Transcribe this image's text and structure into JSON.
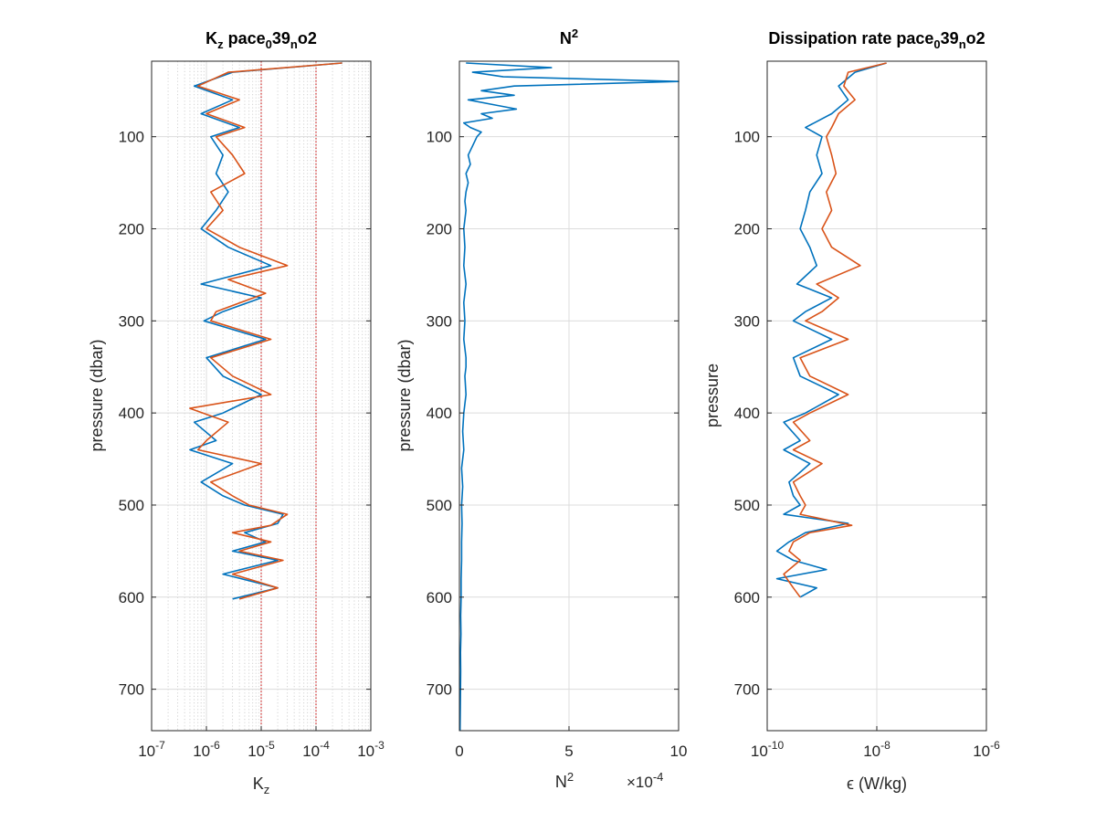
{
  "figure": {
    "background": "#ffffff",
    "series_colors": [
      "#0072BD",
      "#D95319"
    ]
  },
  "chart_data": [
    {
      "type": "line",
      "title": "K_z pace_0 39_n o2",
      "title_parts": {
        "a": "K",
        "a_sub": "z",
        "b": " pace",
        "b_sub": "0",
        "c": "39",
        "c_sub": "n",
        "d": "o2"
      },
      "xlabel": "K_z",
      "xlabel_parts": {
        "main": "K",
        "sub": "z"
      },
      "ylabel": "pressure (dbar)",
      "xscale": "log",
      "xlim": [
        1e-07,
        0.001
      ],
      "ylim": [
        745,
        18
      ],
      "y_reversed": true,
      "grid": true,
      "minor_grid_x": true,
      "xticks": [
        1e-07,
        1e-06,
        1e-05,
        0.0001,
        0.001
      ],
      "xtick_labels": [
        {
          "base": "10",
          "exp": "-7"
        },
        {
          "base": "10",
          "exp": "-6"
        },
        {
          "base": "10",
          "exp": "-5"
        },
        {
          "base": "10",
          "exp": "-4"
        },
        {
          "base": "10",
          "exp": "-3"
        }
      ],
      "yticks": [
        100,
        200,
        300,
        400,
        500,
        600,
        700
      ],
      "reference_lines": {
        "x": [
          1e-05,
          0.0001
        ],
        "color": "#CC0000",
        "style": "dotted"
      },
      "series": [
        {
          "color": "#0072BD",
          "depths": [
            20,
            30,
            45,
            60,
            75,
            90,
            100,
            120,
            140,
            160,
            180,
            200,
            220,
            240,
            260,
            275,
            290,
            300,
            320,
            340,
            360,
            380,
            400,
            410,
            430,
            440,
            455,
            475,
            490,
            500,
            510,
            520,
            530,
            540,
            550,
            560,
            575,
            590,
            602
          ],
          "values": [
            0.0003,
            3e-06,
            6e-07,
            3e-06,
            8e-07,
            4e-06,
            1.2e-06,
            2e-06,
            1.5e-06,
            2.5e-06,
            1.5e-06,
            8e-07,
            2.5e-06,
            1.5e-05,
            8e-07,
            1e-05,
            2e-06,
            9e-07,
            1.2e-05,
            1e-06,
            2e-06,
            1e-05,
            2e-06,
            6e-07,
            1.5e-06,
            5e-07,
            3e-06,
            8e-07,
            2e-06,
            5e-06,
            2.5e-05,
            2e-05,
            5e-06,
            1.2e-05,
            3e-06,
            2e-05,
            2e-06,
            2e-05,
            3e-06
          ]
        },
        {
          "color": "#D95319",
          "depths": [
            20,
            30,
            45,
            60,
            75,
            90,
            100,
            120,
            140,
            160,
            180,
            200,
            220,
            240,
            255,
            270,
            290,
            300,
            320,
            340,
            360,
            380,
            395,
            410,
            430,
            440,
            455,
            475,
            490,
            500,
            510,
            522,
            530,
            540,
            550,
            560,
            575,
            590,
            602
          ],
          "values": [
            0.0003,
            2.5e-06,
            7e-07,
            4e-06,
            1e-06,
            5e-06,
            1.5e-06,
            3e-06,
            5e-06,
            1.2e-06,
            2e-06,
            1e-06,
            4e-06,
            3e-05,
            2.5e-06,
            1.2e-05,
            1.5e-06,
            1.2e-06,
            1.5e-05,
            1.2e-06,
            3e-06,
            1.5e-05,
            5e-07,
            2.5e-06,
            1e-06,
            7e-07,
            1e-05,
            1.2e-06,
            3e-06,
            6e-06,
            3e-05,
            1.5e-05,
            3e-06,
            1.5e-05,
            4e-06,
            2.5e-05,
            3e-06,
            2e-05,
            4e-06
          ]
        }
      ]
    },
    {
      "type": "line",
      "title": "N^2",
      "title_parts": {
        "main": "N",
        "sup": "2"
      },
      "xlabel": "N^2",
      "xlabel_parts": {
        "main": "N",
        "sup": "2"
      },
      "ylabel": "pressure (dbar)",
      "xscale": "linear",
      "xlim": [
        0,
        10
      ],
      "x_multiplier": "×10^-4",
      "x_multiplier_parts": {
        "prefix": "×10",
        "exp": "-4"
      },
      "ylim": [
        745,
        18
      ],
      "y_reversed": true,
      "grid": true,
      "xticks": [
        0,
        5,
        10
      ],
      "xtick_labels": [
        "0",
        "5",
        "10"
      ],
      "yticks": [
        100,
        200,
        300,
        400,
        500,
        600,
        700
      ],
      "series": [
        {
          "color": "#0072BD",
          "depths": [
            20,
            25,
            30,
            35,
            40,
            45,
            50,
            55,
            60,
            65,
            70,
            75,
            80,
            85,
            90,
            95,
            100,
            110,
            120,
            130,
            140,
            150,
            160,
            170,
            180,
            200,
            220,
            240,
            260,
            280,
            300,
            320,
            340,
            350,
            360,
            380,
            400,
            420,
            440,
            460,
            480,
            500,
            520,
            540,
            560,
            580,
            600,
            620,
            640,
            660,
            680,
            700,
            720,
            745
          ],
          "values": [
            0.3,
            4.2,
            0.6,
            2.0,
            10.0,
            2.5,
            1.0,
            2.5,
            0.4,
            1.5,
            2.6,
            1.0,
            1.5,
            0.2,
            0.5,
            1.0,
            0.8,
            0.6,
            0.4,
            0.5,
            0.3,
            0.4,
            0.3,
            0.25,
            0.3,
            0.2,
            0.25,
            0.2,
            0.3,
            0.2,
            0.25,
            0.2,
            0.3,
            0.3,
            0.25,
            0.3,
            0.2,
            0.15,
            0.2,
            0.1,
            0.15,
            0.1,
            0.12,
            0.1,
            0.1,
            0.08,
            0.08,
            0.06,
            0.07,
            0.05,
            0.06,
            0.05,
            0.04,
            0.03
          ]
        }
      ]
    },
    {
      "type": "line",
      "title": "Dissipation rate pace_0 39_n o2",
      "title_parts": {
        "a": "Dissipation rate pace",
        "a_sub": "0",
        "b": "39",
        "b_sub": "n",
        "c": "o2"
      },
      "xlabel": "ϵ (W/kg)",
      "ylabel": "pressure",
      "xscale": "log",
      "xlim": [
        1e-10,
        1e-06
      ],
      "ylim": [
        745,
        18
      ],
      "y_reversed": true,
      "grid": true,
      "xticks": [
        1e-10,
        1e-08,
        1e-06
      ],
      "xtick_labels": [
        {
          "base": "10",
          "exp": "-10"
        },
        {
          "base": "10",
          "exp": "-8"
        },
        {
          "base": "10",
          "exp": "-6"
        }
      ],
      "yticks": [
        100,
        200,
        300,
        400,
        500,
        600,
        700
      ],
      "series": [
        {
          "color": "#0072BD",
          "depths": [
            20,
            30,
            45,
            60,
            75,
            90,
            100,
            120,
            140,
            160,
            180,
            200,
            220,
            240,
            260,
            275,
            290,
            300,
            320,
            340,
            360,
            380,
            400,
            410,
            430,
            440,
            455,
            475,
            490,
            500,
            510,
            520,
            530,
            540,
            550,
            560,
            570,
            580,
            590,
            600
          ],
          "values": [
            1.5e-08,
            4e-09,
            2e-09,
            3e-09,
            1.5e-09,
            5e-10,
            1e-09,
            8e-10,
            1e-09,
            6e-10,
            5e-10,
            4e-10,
            6e-10,
            8e-10,
            3.5e-10,
            1.5e-09,
            5e-10,
            3e-10,
            1.5e-09,
            3e-10,
            4e-10,
            2e-09,
            5e-10,
            2e-10,
            4e-10,
            2e-10,
            6e-10,
            2.5e-10,
            3e-10,
            4e-10,
            2e-10,
            3e-09,
            5e-10,
            2.5e-10,
            1.5e-10,
            3e-10,
            1.2e-09,
            1.5e-10,
            8e-10,
            4e-10
          ]
        },
        {
          "color": "#D95319",
          "depths": [
            20,
            30,
            45,
            60,
            75,
            90,
            100,
            120,
            140,
            160,
            180,
            200,
            220,
            240,
            260,
            275,
            290,
            300,
            320,
            340,
            360,
            380,
            400,
            410,
            430,
            440,
            455,
            475,
            490,
            500,
            510,
            522,
            530,
            540,
            550,
            560,
            575,
            590,
            600
          ],
          "values": [
            1.5e-08,
            3e-09,
            2.5e-09,
            4e-09,
            2e-09,
            1.5e-09,
            1.2e-09,
            1.5e-09,
            1.8e-09,
            1.2e-09,
            1.5e-09,
            1e-09,
            1.5e-09,
            5e-09,
            8e-10,
            2e-09,
            1e-09,
            5e-10,
            3e-09,
            4e-10,
            6e-10,
            3e-09,
            6e-10,
            3e-10,
            6e-10,
            3e-10,
            1e-09,
            3e-10,
            4e-10,
            5e-10,
            4e-10,
            3.5e-09,
            6e-10,
            3e-10,
            2.5e-10,
            4e-10,
            2e-10,
            3e-10,
            4e-10
          ]
        }
      ]
    }
  ]
}
